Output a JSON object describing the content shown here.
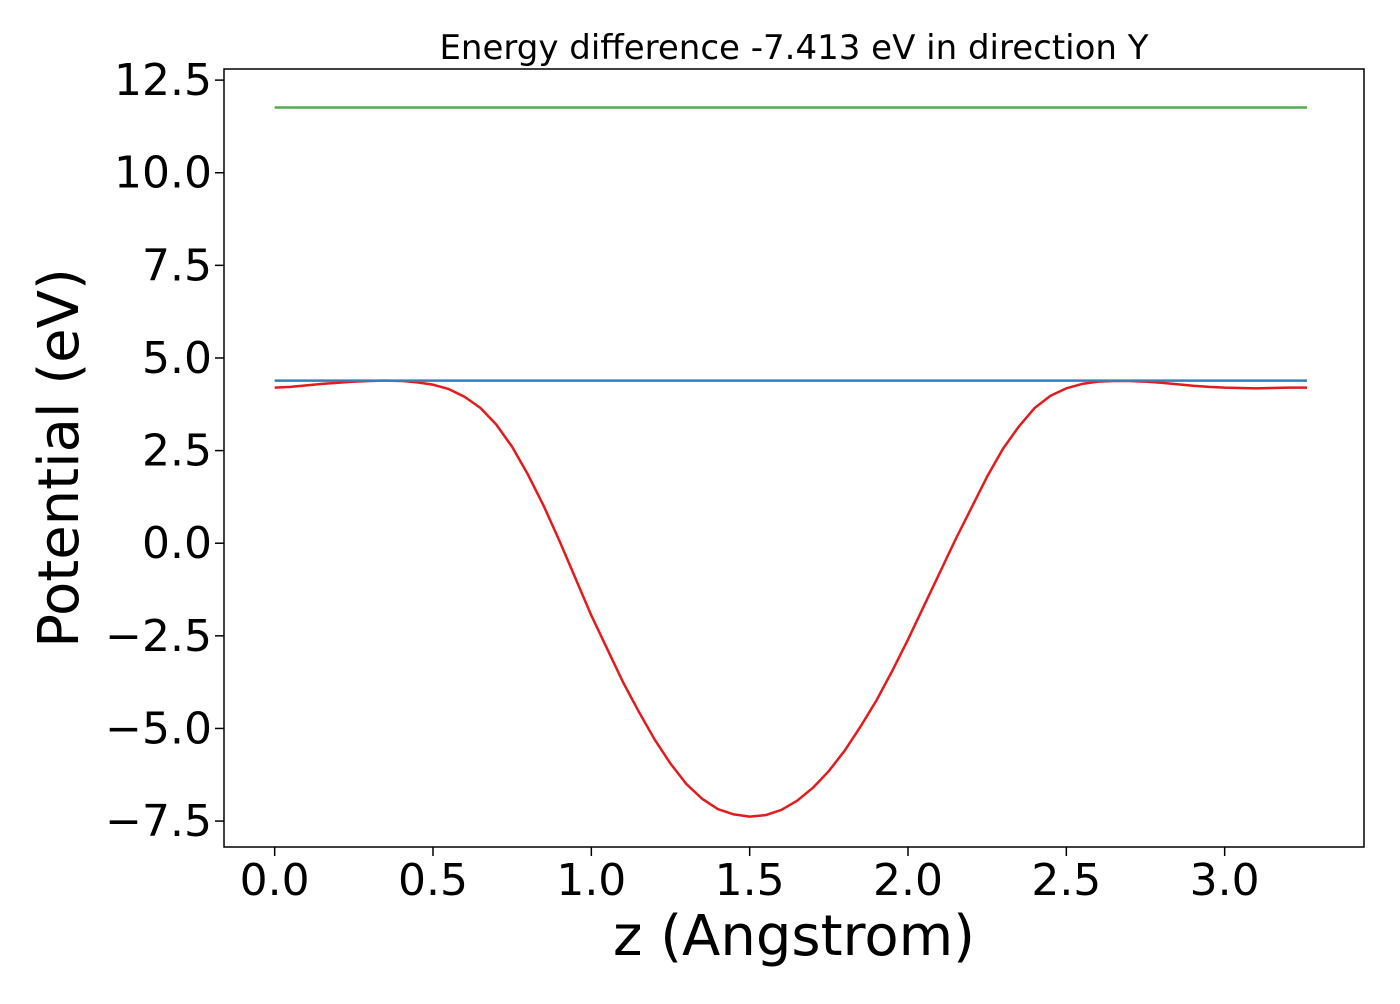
{
  "chart_data": {
    "type": "line",
    "title": "Energy difference -7.413 eV in direction Y",
    "xlabel": "z (Angstrom)",
    "ylabel": "Potential (eV)",
    "xlim": [
      -0.16,
      3.44
    ],
    "ylim": [
      -8.2,
      12.8
    ],
    "xticks": [
      0.0,
      0.5,
      1.0,
      1.5,
      2.0,
      2.5,
      3.0
    ],
    "xtick_labels": [
      "0.0",
      "0.5",
      "1.0",
      "1.5",
      "2.0",
      "2.5",
      "3.0"
    ],
    "yticks": [
      12.5,
      10.0,
      7.5,
      5.0,
      2.5,
      0.0,
      -2.5,
      -5.0,
      -7.5
    ],
    "ytick_labels": [
      "12.5",
      "10.0",
      "7.5",
      "5.0",
      "2.5",
      "0.0",
      "−2.5",
      "−5.0",
      "−7.5"
    ],
    "grid": false,
    "legend": "none",
    "series": [
      {
        "color": "#e41a1c",
        "x": [
          0.0,
          0.05,
          0.1,
          0.15,
          0.2,
          0.25,
          0.3,
          0.35,
          0.4,
          0.45,
          0.5,
          0.55,
          0.6,
          0.65,
          0.7,
          0.75,
          0.8,
          0.85,
          0.9,
          0.95,
          1.0,
          1.05,
          1.1,
          1.15,
          1.2,
          1.25,
          1.3,
          1.35,
          1.4,
          1.45,
          1.5,
          1.55,
          1.6,
          1.65,
          1.7,
          1.75,
          1.8,
          1.85,
          1.9,
          1.95,
          2.0,
          2.05,
          2.1,
          2.15,
          2.2,
          2.25,
          2.3,
          2.35,
          2.4,
          2.45,
          2.5,
          2.55,
          2.6,
          2.65,
          2.7,
          2.75,
          2.8,
          2.85,
          2.9,
          2.95,
          3.0,
          3.05,
          3.1,
          3.15,
          3.2,
          3.26
        ],
        "y": [
          4.2,
          4.22,
          4.26,
          4.3,
          4.33,
          4.36,
          4.38,
          4.39,
          4.38,
          4.34,
          4.28,
          4.16,
          3.95,
          3.65,
          3.2,
          2.6,
          1.85,
          1.0,
          0.05,
          -0.95,
          -1.95,
          -2.85,
          -3.75,
          -4.55,
          -5.3,
          -5.95,
          -6.5,
          -6.9,
          -7.18,
          -7.32,
          -7.38,
          -7.34,
          -7.2,
          -6.95,
          -6.6,
          -6.15,
          -5.6,
          -4.95,
          -4.25,
          -3.45,
          -2.6,
          -1.7,
          -0.8,
          0.1,
          0.95,
          1.8,
          2.55,
          3.15,
          3.65,
          3.98,
          4.18,
          4.3,
          4.36,
          4.38,
          4.38,
          4.36,
          4.33,
          4.29,
          4.25,
          4.22,
          4.2,
          4.19,
          4.18,
          4.19,
          4.2,
          4.2
        ]
      },
      {
        "color": "#4daf4a",
        "x": [
          0.0,
          3.26
        ],
        "y": [
          11.76,
          11.76
        ]
      },
      {
        "color": "#377eb8",
        "x": [
          0.0,
          3.26
        ],
        "y": [
          4.39,
          4.39
        ]
      }
    ]
  }
}
